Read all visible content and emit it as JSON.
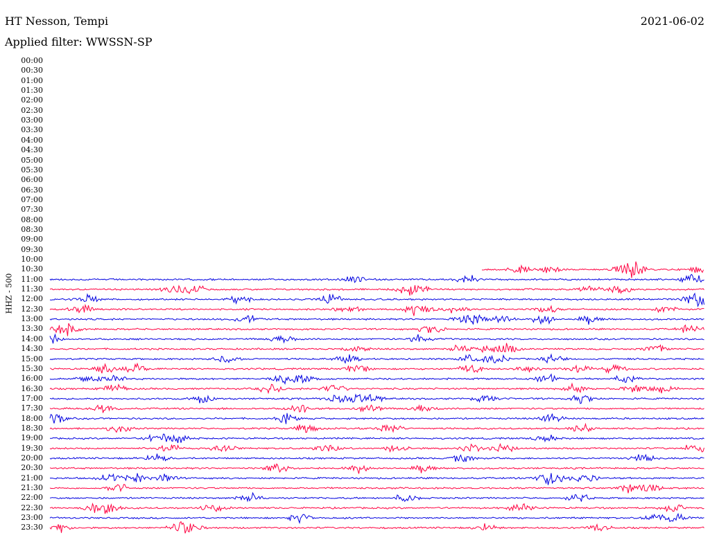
{
  "header": {
    "station": "HT Nesson, Tempi",
    "filter": "Applied filter: WWSSN-SP",
    "date": "2021-06-02"
  },
  "channel_label": "HHZ - 500",
  "colors": {
    "trace_a": "#0000e0",
    "trace_b": "#ff0040"
  },
  "rows": [
    {
      "time": "00:00",
      "active": false
    },
    {
      "time": "00:30",
      "active": false
    },
    {
      "time": "01:00",
      "active": false
    },
    {
      "time": "01:30",
      "active": false
    },
    {
      "time": "02:00",
      "active": false
    },
    {
      "time": "02:30",
      "active": false
    },
    {
      "time": "03:00",
      "active": false
    },
    {
      "time": "03:30",
      "active": false
    },
    {
      "time": "04:00",
      "active": false
    },
    {
      "time": "04:30",
      "active": false
    },
    {
      "time": "05:00",
      "active": false
    },
    {
      "time": "05:30",
      "active": false
    },
    {
      "time": "06:00",
      "active": false
    },
    {
      "time": "06:30",
      "active": false
    },
    {
      "time": "07:00",
      "active": false
    },
    {
      "time": "07:30",
      "active": false
    },
    {
      "time": "08:00",
      "active": false
    },
    {
      "time": "08:30",
      "active": false
    },
    {
      "time": "09:00",
      "active": false
    },
    {
      "time": "09:30",
      "active": false
    },
    {
      "time": "10:00",
      "active": false
    },
    {
      "time": "10:30",
      "active": true,
      "partial_start": 0.66
    },
    {
      "time": "11:00",
      "active": true
    },
    {
      "time": "11:30",
      "active": true
    },
    {
      "time": "12:00",
      "active": true
    },
    {
      "time": "12:30",
      "active": true
    },
    {
      "time": "13:00",
      "active": true
    },
    {
      "time": "13:30",
      "active": true
    },
    {
      "time": "14:00",
      "active": true
    },
    {
      "time": "14:30",
      "active": true
    },
    {
      "time": "15:00",
      "active": true
    },
    {
      "time": "15:30",
      "active": true
    },
    {
      "time": "16:00",
      "active": true
    },
    {
      "time": "16:30",
      "active": true
    },
    {
      "time": "17:00",
      "active": true
    },
    {
      "time": "17:30",
      "active": true
    },
    {
      "time": "18:00",
      "active": true
    },
    {
      "time": "18:30",
      "active": true
    },
    {
      "time": "19:00",
      "active": true
    },
    {
      "time": "19:30",
      "active": true
    },
    {
      "time": "20:00",
      "active": true
    },
    {
      "time": "20:30",
      "active": true
    },
    {
      "time": "21:00",
      "active": true
    },
    {
      "time": "21:30",
      "active": true
    },
    {
      "time": "22:00",
      "active": true
    },
    {
      "time": "22:30",
      "active": true
    },
    {
      "time": "23:00",
      "active": true
    },
    {
      "time": "23:30",
      "active": true
    }
  ]
}
